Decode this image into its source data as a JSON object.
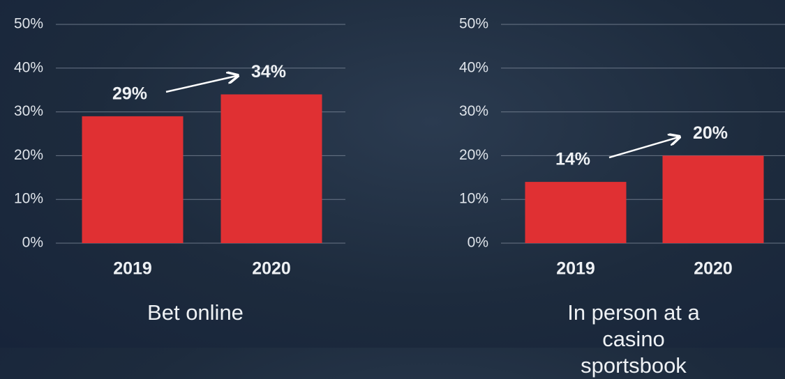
{
  "chart_data": [
    {
      "type": "bar",
      "title": "Bet online",
      "categories": [
        "2019",
        "2020"
      ],
      "values": [
        29,
        34
      ],
      "value_labels": [
        "29%",
        "34%"
      ],
      "color": "#e03033",
      "ylim": [
        0,
        50
      ],
      "yticks": [
        {
          "value": 0,
          "label": "0%"
        },
        {
          "value": 10,
          "label": "10%"
        },
        {
          "value": 20,
          "label": "20%"
        },
        {
          "value": 30,
          "label": "30%"
        },
        {
          "value": 40,
          "label": "40%"
        },
        {
          "value": 50,
          "label": "50%"
        }
      ],
      "grid": true
    },
    {
      "type": "bar",
      "title": "In person at a casino sportsbook",
      "categories": [
        "2019",
        "2020"
      ],
      "values": [
        14,
        20
      ],
      "value_labels": [
        "14%",
        "20%"
      ],
      "color": "#e03033",
      "ylim": [
        0,
        50
      ],
      "yticks": [
        {
          "value": 0,
          "label": "0%"
        },
        {
          "value": 10,
          "label": "10%"
        },
        {
          "value": 20,
          "label": "20%"
        },
        {
          "value": 30,
          "label": "30%"
        },
        {
          "value": 40,
          "label": "40%"
        },
        {
          "value": 50,
          "label": "50%"
        }
      ],
      "grid": true
    }
  ]
}
